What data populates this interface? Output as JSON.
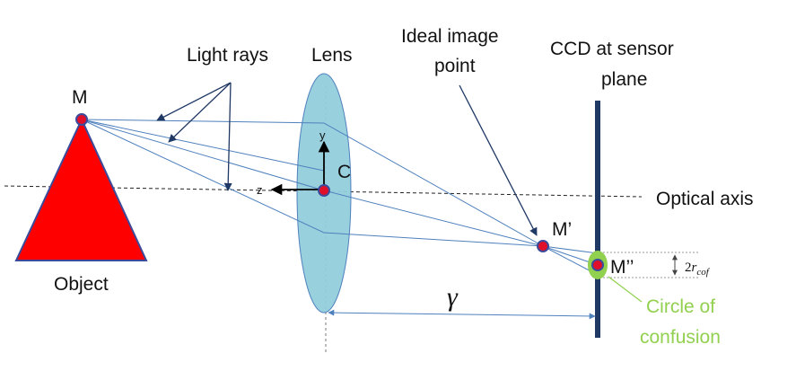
{
  "labels": {
    "light_rays": "Light rays",
    "lens": "Lens",
    "ideal_image_point_line1": "Ideal image",
    "ideal_image_point_line2": "point",
    "ccd_line1": "CCD at sensor",
    "ccd_line2": "plane",
    "optical_axis": "Optical axis",
    "object": "Object",
    "point_m": "M",
    "point_c": "C",
    "point_m_prime": "M’",
    "point_m_double_prime": "M’’",
    "axis_y": "y",
    "axis_z": "z",
    "gamma": "γ",
    "radius_label_base": "2",
    "radius_label_r": "r",
    "radius_label_sub": "cof",
    "coc_line1": "Circle of",
    "coc_line2": "confusion"
  },
  "colors": {
    "object_fill": "#ff0000",
    "lens_fill": "#92cddc",
    "ray_color": "#4f81bd",
    "sensor_color": "#1f3864",
    "point_fill": "#e0102a",
    "point_stroke": "#3b4a9a",
    "coc_fill": "#92d050",
    "coc_text": "#92d050",
    "pointer_color": "#1f3864"
  }
}
